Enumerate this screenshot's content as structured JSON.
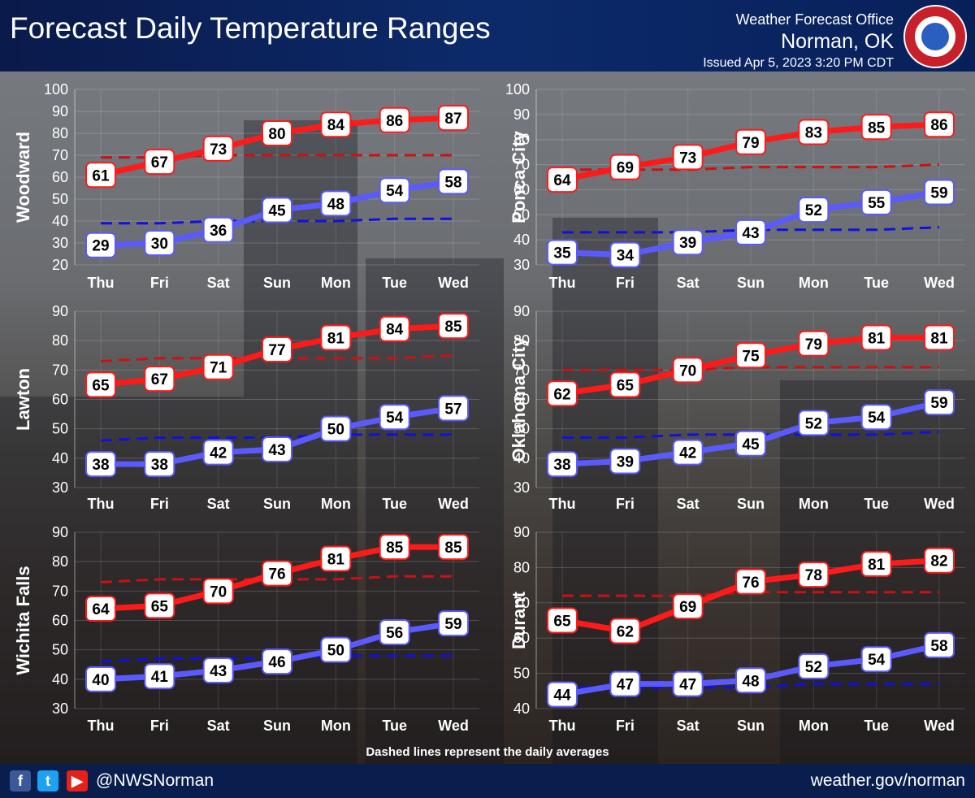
{
  "header": {
    "title": "Forecast Daily Temperature Ranges",
    "office_line1": "Weather Forecast Office",
    "office_line2": "Norman, OK",
    "issued": "Issued Apr 5, 2023 3:20 PM CDT"
  },
  "footnote": "Dashed lines represent the daily averages",
  "footer": {
    "handle": "@NWSNorman",
    "url": "weather.gov/norman",
    "icons": [
      "facebook-icon",
      "twitter-icon",
      "youtube-icon"
    ]
  },
  "colors": {
    "high": "#ff1a1a",
    "low": "#5a5aff",
    "avg_high": "#cc1111",
    "avg_low": "#1010e0",
    "header_bg": "#0c2a6a"
  },
  "chart_data": [
    {
      "type": "line",
      "city": "Woodward",
      "categories": [
        "Thu",
        "Fri",
        "Sat",
        "Sun",
        "Mon",
        "Tue",
        "Wed"
      ],
      "ylim": [
        20,
        100
      ],
      "yticks": [
        20,
        30,
        40,
        50,
        60,
        70,
        80,
        90,
        100
      ],
      "series": [
        {
          "name": "High",
          "values": [
            61,
            67,
            73,
            80,
            84,
            86,
            87
          ]
        },
        {
          "name": "Low",
          "values": [
            29,
            30,
            36,
            45,
            48,
            54,
            58
          ]
        },
        {
          "name": "Average High",
          "values": [
            69,
            69,
            70,
            70,
            70,
            70,
            70
          ]
        },
        {
          "name": "Average Low",
          "values": [
            39,
            39,
            40,
            40,
            40,
            41,
            41
          ]
        }
      ]
    },
    {
      "type": "line",
      "city": "Ponca City",
      "categories": [
        "Thu",
        "Fri",
        "Sat",
        "Sun",
        "Mon",
        "Tue",
        "Wed"
      ],
      "ylim": [
        30,
        100
      ],
      "yticks": [
        30,
        40,
        50,
        60,
        70,
        80,
        90,
        100
      ],
      "series": [
        {
          "name": "High",
          "values": [
            64,
            69,
            73,
            79,
            83,
            85,
            86
          ]
        },
        {
          "name": "Low",
          "values": [
            35,
            34,
            39,
            43,
            52,
            55,
            59
          ]
        },
        {
          "name": "Average High",
          "values": [
            68,
            68,
            68,
            69,
            69,
            69,
            70
          ]
        },
        {
          "name": "Average Low",
          "values": [
            43,
            43,
            43,
            44,
            44,
            44,
            45
          ]
        }
      ]
    },
    {
      "type": "line",
      "city": "Lawton",
      "categories": [
        "Thu",
        "Fri",
        "Sat",
        "Sun",
        "Mon",
        "Tue",
        "Wed"
      ],
      "ylim": [
        30,
        90
      ],
      "yticks": [
        30,
        40,
        50,
        60,
        70,
        80,
        90
      ],
      "series": [
        {
          "name": "High",
          "values": [
            65,
            67,
            71,
            77,
            81,
            84,
            85
          ]
        },
        {
          "name": "Low",
          "values": [
            38,
            38,
            42,
            43,
            50,
            54,
            57
          ]
        },
        {
          "name": "Average High",
          "values": [
            73,
            74,
            74,
            74,
            74,
            74,
            75
          ]
        },
        {
          "name": "Average Low",
          "values": [
            46,
            47,
            47,
            47,
            48,
            48,
            48
          ]
        }
      ]
    },
    {
      "type": "line",
      "city": "Oklahoma City",
      "categories": [
        "Thu",
        "Fri",
        "Sat",
        "Sun",
        "Mon",
        "Tue",
        "Wed"
      ],
      "ylim": [
        30,
        90
      ],
      "yticks": [
        30,
        40,
        50,
        60,
        70,
        80,
        90
      ],
      "series": [
        {
          "name": "High",
          "values": [
            62,
            65,
            70,
            75,
            79,
            81,
            81
          ]
        },
        {
          "name": "Low",
          "values": [
            38,
            39,
            42,
            45,
            52,
            54,
            59
          ]
        },
        {
          "name": "Average High",
          "values": [
            70,
            70,
            70,
            71,
            71,
            71,
            71
          ]
        },
        {
          "name": "Average Low",
          "values": [
            47,
            47,
            48,
            48,
            48,
            48,
            49
          ]
        }
      ]
    },
    {
      "type": "line",
      "city": "Wichita Falls",
      "categories": [
        "Thu",
        "Fri",
        "Sat",
        "Sun",
        "Mon",
        "Tue",
        "Wed"
      ],
      "ylim": [
        30,
        90
      ],
      "yticks": [
        30,
        40,
        50,
        60,
        70,
        80,
        90
      ],
      "series": [
        {
          "name": "High",
          "values": [
            64,
            65,
            70,
            76,
            81,
            85,
            85
          ]
        },
        {
          "name": "Low",
          "values": [
            40,
            41,
            43,
            46,
            50,
            56,
            59
          ]
        },
        {
          "name": "Average High",
          "values": [
            73,
            74,
            74,
            74,
            74,
            75,
            75
          ]
        },
        {
          "name": "Average Low",
          "values": [
            46,
            47,
            47,
            47,
            48,
            48,
            48
          ]
        }
      ]
    },
    {
      "type": "line",
      "city": "Durant",
      "categories": [
        "Thu",
        "Fri",
        "Sat",
        "Sun",
        "Mon",
        "Tue",
        "Wed"
      ],
      "ylim": [
        40,
        90
      ],
      "yticks": [
        40,
        50,
        60,
        70,
        80,
        90
      ],
      "series": [
        {
          "name": "High",
          "values": [
            65,
            62,
            69,
            76,
            78,
            81,
            82
          ]
        },
        {
          "name": "Low",
          "values": [
            44,
            47,
            47,
            48,
            52,
            54,
            58
          ]
        },
        {
          "name": "Average High",
          "values": [
            72,
            72,
            72,
            73,
            73,
            73,
            73
          ]
        },
        {
          "name": "Average Low",
          "values": [
            46,
            46,
            46,
            46,
            47,
            47,
            47
          ]
        }
      ]
    }
  ]
}
